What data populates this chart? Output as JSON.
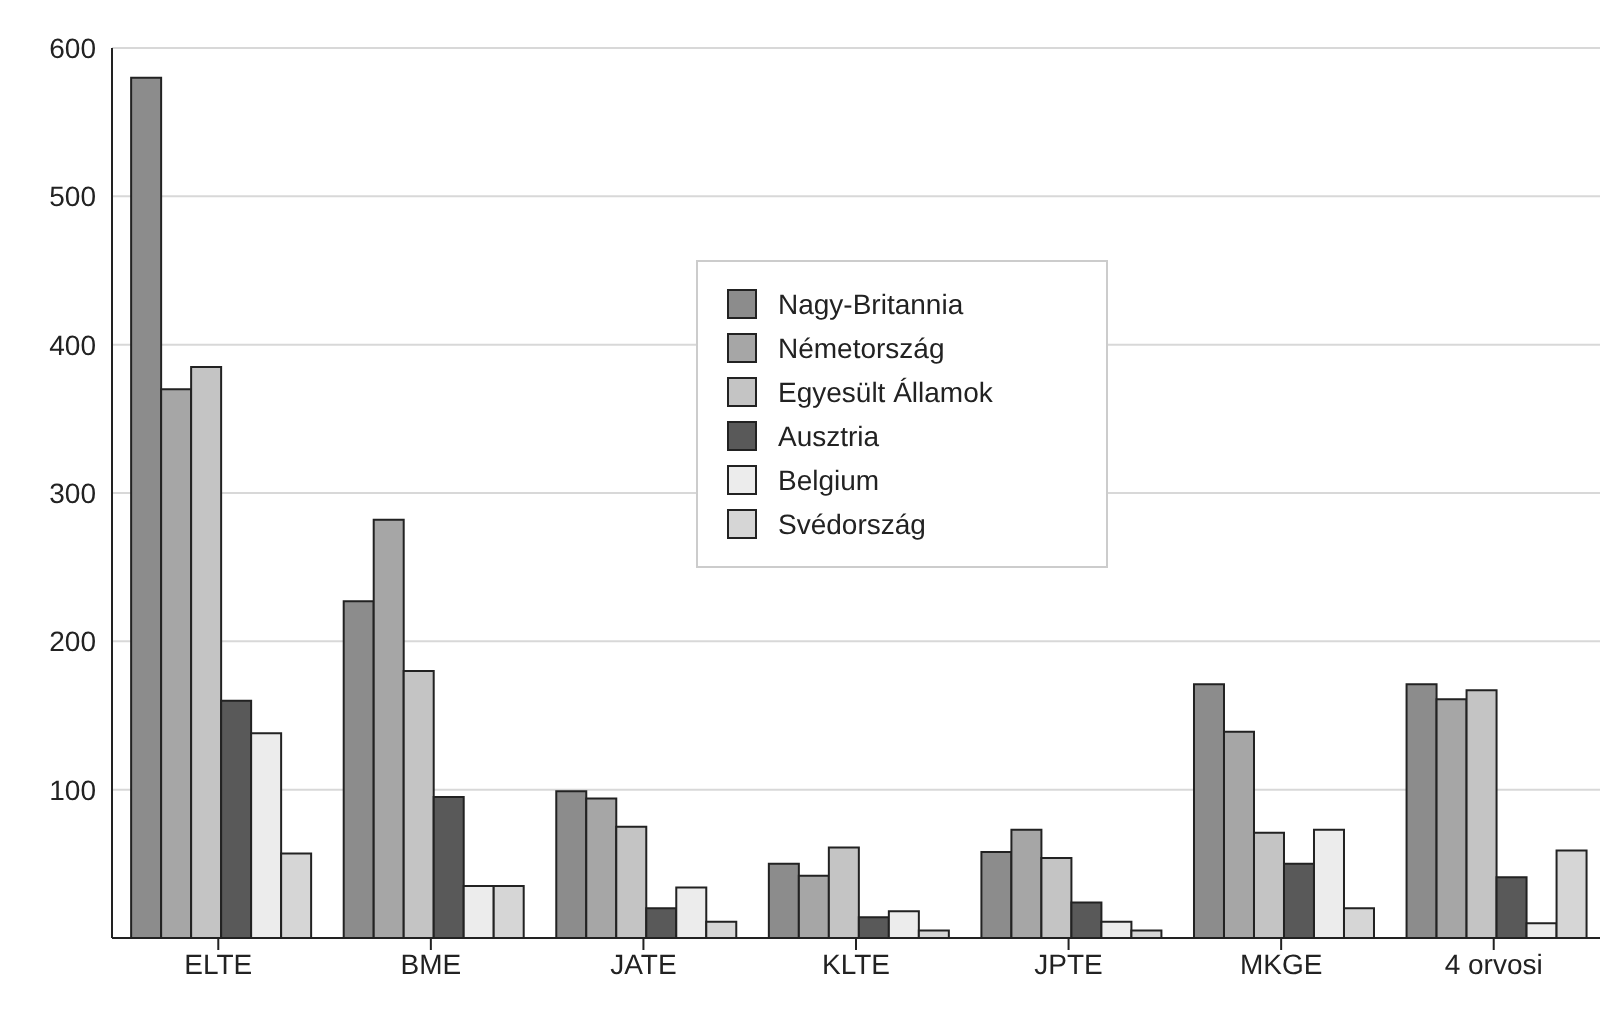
{
  "chart_data": {
    "type": "bar",
    "categories": [
      "ELTE",
      "BME",
      "JATE",
      "KLTE",
      "JPTE",
      "MKGE",
      "4 orvosi"
    ],
    "series": [
      {
        "name": "Nagy-Britannia",
        "color": "#8c8c8c",
        "values": [
          580,
          227,
          99,
          50,
          58,
          171,
          171
        ]
      },
      {
        "name": "Németország",
        "color": "#a6a6a6",
        "values": [
          370,
          282,
          94,
          42,
          73,
          139,
          161
        ]
      },
      {
        "name": "Egyesült Államok",
        "color": "#c4c4c4",
        "values": [
          385,
          180,
          75,
          61,
          54,
          71,
          167
        ]
      },
      {
        "name": "Ausztria",
        "color": "#595959",
        "values": [
          160,
          95,
          20,
          14,
          24,
          50,
          41
        ]
      },
      {
        "name": "Belgium",
        "color": "#ececec",
        "values": [
          138,
          35,
          34,
          18,
          11,
          73,
          10
        ]
      },
      {
        "name": "Svédország",
        "color": "#d6d6d6",
        "values": [
          57,
          35,
          11,
          5,
          5,
          20,
          59
        ]
      }
    ],
    "ylim": [
      0,
      600
    ],
    "yticks": [
      100,
      200,
      300,
      400,
      500,
      600
    ],
    "grid": "y",
    "legend": "top"
  }
}
